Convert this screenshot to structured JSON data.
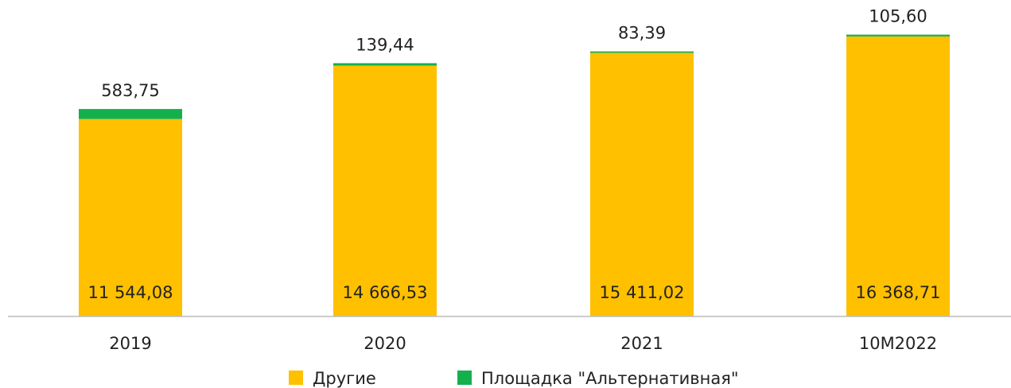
{
  "chart_data": {
    "type": "stacked_bar",
    "categories": [
      "2019",
      "2020",
      "2021",
      "10M2022"
    ],
    "series": [
      {
        "name": "Другие",
        "color": "#ffc000",
        "values": [
          11544.08,
          14666.53,
          15411.02,
          16368.71
        ],
        "value_labels": [
          "11 544,08",
          "14 666,53",
          "15 411,02",
          "16 368,71"
        ]
      },
      {
        "name": "Площадка \"Альтернативная\"",
        "color": "#14b04c",
        "values": [
          583.75,
          139.44,
          83.39,
          105.6
        ],
        "value_labels": [
          "583,75",
          "139,44",
          "83,39",
          "105,60"
        ]
      }
    ],
    "ylim": [
      0,
      18500
    ]
  }
}
